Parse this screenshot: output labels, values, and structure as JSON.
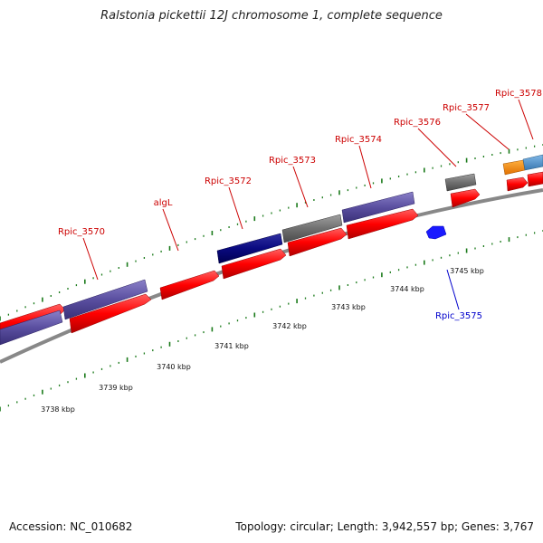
{
  "title": "Ralstonia pickettii 12J chromosome 1, complete sequence",
  "footer": {
    "accession": "Accession: NC_010682",
    "summary": "Topology: circular; Length: 3,942,557 bp; Genes: 3,767"
  },
  "colors": {
    "forward_cds": "#ff0000",
    "reverse_cds": "#1a1aff",
    "gene_purple": "#5a4fa0",
    "gene_navy": "#0a0a80",
    "gene_gray": "#707070",
    "gene_orange": "#ff8c00",
    "gene_steelblue": "#4f8fc8",
    "label_forward": "#cc0000",
    "label_reverse": "#0000cc",
    "tick": "#1a7a1a",
    "backbone": "#888888"
  },
  "gene_labels": [
    {
      "text": "Rpic_3570",
      "strand": "forward"
    },
    {
      "text": "algL",
      "strand": "forward"
    },
    {
      "text": "Rpic_3572",
      "strand": "forward"
    },
    {
      "text": "Rpic_3573",
      "strand": "forward"
    },
    {
      "text": "Rpic_3574",
      "strand": "forward"
    },
    {
      "text": "Rpic_3576",
      "strand": "forward"
    },
    {
      "text": "Rpic_3577",
      "strand": "forward"
    },
    {
      "text": "Rpic_3578",
      "strand": "forward"
    },
    {
      "text": "Rpic_3575",
      "strand": "reverse"
    }
  ],
  "kbp_labels": [
    "3738 kbp",
    "3739 kbp",
    "3740 kbp",
    "3741 kbp",
    "3742 kbp",
    "3743 kbp",
    "3744 kbp",
    "3745 kbp"
  ]
}
